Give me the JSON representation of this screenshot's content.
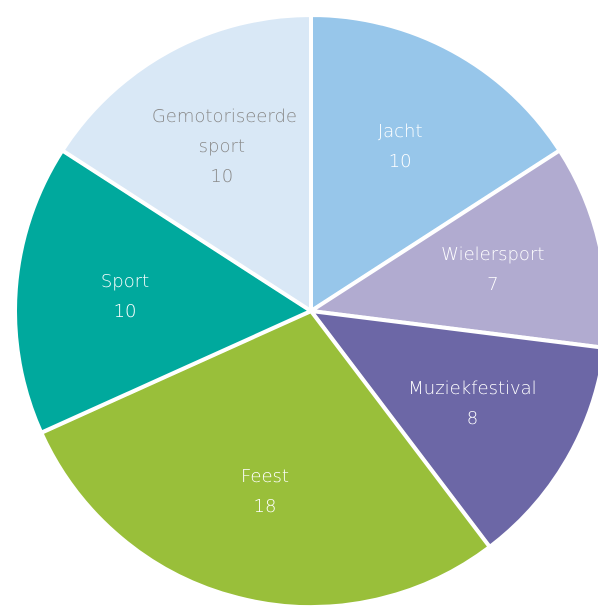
{
  "chart_data": {
    "type": "pie",
    "categories": [
      "Jacht",
      "Wielersport",
      "Muziekfestival",
      "Feest",
      "Sport",
      "Gemotoriseerde sport"
    ],
    "values": [
      10,
      7,
      8,
      18,
      10,
      10
    ],
    "colors": [
      "#97c6ea",
      "#b1abd0",
      "#6c67a6",
      "#99bf3a",
      "#00a99d",
      "#d9e8f6"
    ],
    "label_colors": [
      "#ffffff",
      "#ffffff",
      "#ffffff",
      "#ffffff",
      "#ffffff",
      "#8a8a8a"
    ]
  }
}
